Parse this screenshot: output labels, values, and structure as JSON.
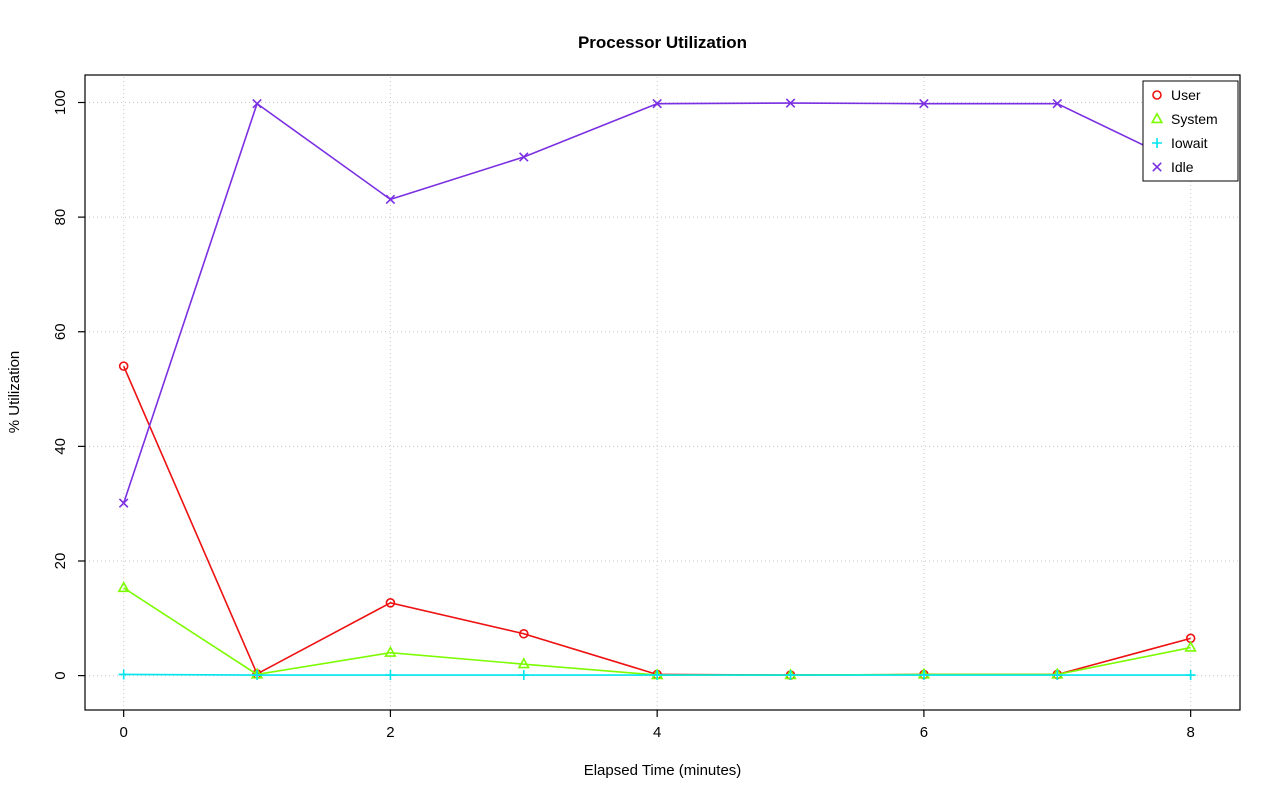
{
  "chart_data": {
    "type": "line",
    "title": "Processor Utilization",
    "xlabel": "Elapsed Time (minutes)",
    "ylabel": "% Utilization",
    "x": [
      0,
      1,
      2,
      3,
      4,
      5,
      6,
      7,
      8
    ],
    "xticks": [
      0,
      2,
      4,
      6,
      8
    ],
    "yticks": [
      0,
      20,
      40,
      60,
      80,
      100
    ],
    "xlim": [
      -0.29,
      8.37
    ],
    "ylim": [
      -6,
      104.8
    ],
    "grid": true,
    "grid_color": "#c8c8c8",
    "axis_color": "#000000",
    "legend_position": "top-right",
    "series": [
      {
        "name": "User",
        "marker": "circle",
        "color": "#ee1111",
        "values": [
          54.0,
          0.3,
          12.7,
          7.3,
          0.2,
          0.1,
          0.2,
          0.2,
          6.5
        ]
      },
      {
        "name": "System",
        "marker": "triangle",
        "color": "#7CFC00",
        "values": [
          15.3,
          0.2,
          4.0,
          2.0,
          0.1,
          0.1,
          0.2,
          0.2,
          4.9
        ]
      },
      {
        "name": "Iowait",
        "marker": "plus",
        "color": "#00E5EE",
        "values": [
          0.2,
          0.1,
          0.1,
          0.1,
          0.1,
          0.1,
          0.1,
          0.1,
          0.1
        ]
      },
      {
        "name": "Idle",
        "marker": "x",
        "color": "#7B2FE2",
        "values": [
          30.1,
          99.8,
          83.1,
          90.5,
          99.8,
          99.9,
          99.8,
          99.8,
          88.6
        ]
      }
    ]
  }
}
